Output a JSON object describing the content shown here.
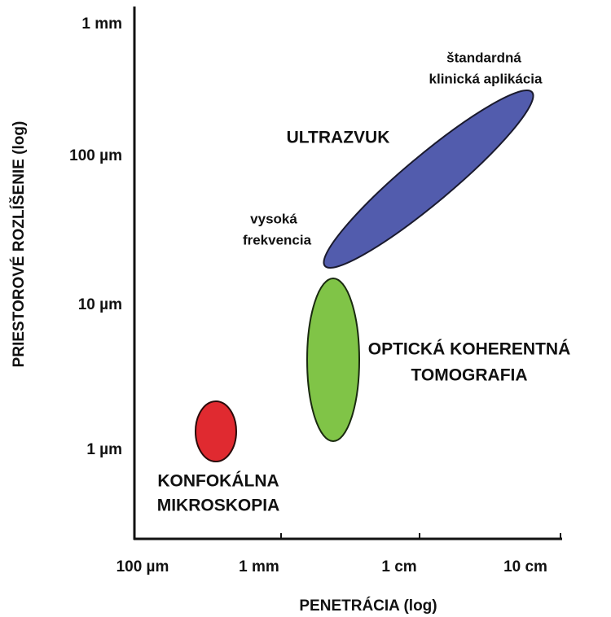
{
  "axes": {
    "y": {
      "title": "PRIESTOROVÉ ROZLÍŠENIE (log)",
      "ticks": [
        "1 mm",
        "100 µm",
        "10 µm",
        "1 µm"
      ]
    },
    "x": {
      "title": "PENETRÁCIA (log)",
      "ticks": [
        "100 µm",
        "1 mm",
        "1 cm",
        "10 cm"
      ]
    }
  },
  "regions": [
    {
      "label": [
        "ULTRAZVUK"
      ]
    },
    {
      "label": [
        "štandardná",
        "klinická aplikácia"
      ]
    },
    {
      "label": [
        "vysoká",
        "frekvencia"
      ]
    },
    {
      "label": [
        "OPTICKÁ KOHERENTNÁ",
        "TOMOGRAFIA"
      ]
    },
    {
      "label": [
        "KONFOKÁLNA",
        "MIKROSKOPIA"
      ]
    }
  ]
}
